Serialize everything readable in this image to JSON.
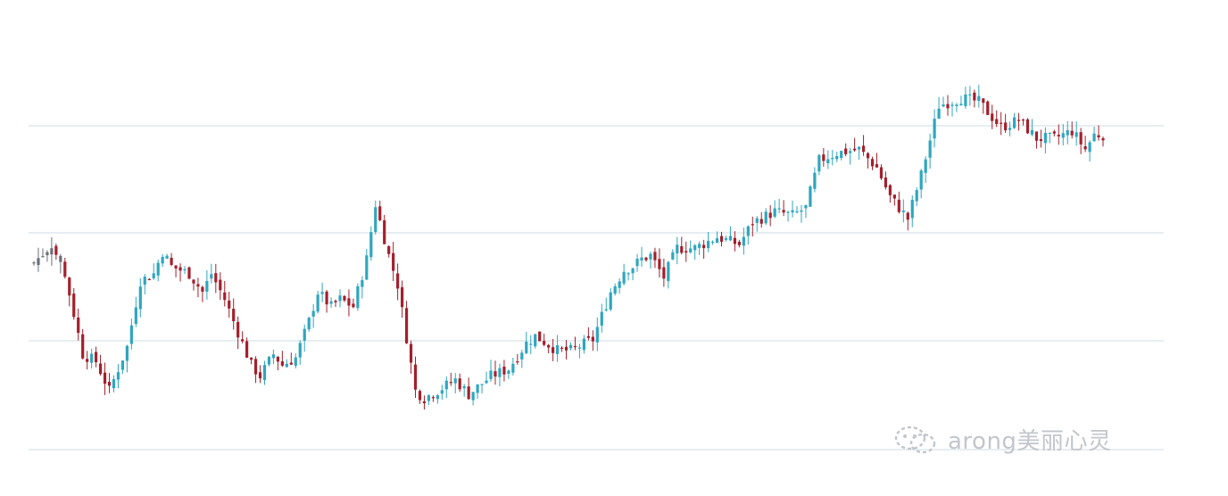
{
  "chart_data": {
    "type": "candlestick",
    "grid": true,
    "ylim": [
      0,
      100
    ],
    "colors": {
      "up": "#2fa6bf",
      "down": "#a3202c",
      "neutral": "#6b7078",
      "grid": "#cfdde6"
    },
    "close_path": [
      [
        0,
        55
      ],
      [
        4,
        60
      ],
      [
        7,
        52
      ],
      [
        11,
        30
      ],
      [
        14,
        28
      ],
      [
        17,
        20
      ],
      [
        21,
        32
      ],
      [
        24,
        50
      ],
      [
        27,
        52
      ],
      [
        29,
        58
      ],
      [
        31,
        54
      ],
      [
        35,
        52
      ],
      [
        38,
        47
      ],
      [
        40,
        52
      ],
      [
        43,
        45
      ],
      [
        46,
        36
      ],
      [
        49,
        27
      ],
      [
        51,
        24
      ],
      [
        54,
        30
      ],
      [
        56,
        27
      ],
      [
        59,
        29
      ],
      [
        62,
        39
      ],
      [
        64,
        47
      ],
      [
        67,
        43
      ],
      [
        69,
        45
      ],
      [
        72,
        43
      ],
      [
        75,
        56
      ],
      [
        77,
        71
      ],
      [
        80,
        57
      ],
      [
        82,
        49
      ],
      [
        86,
        20
      ],
      [
        88,
        18
      ],
      [
        91,
        20
      ],
      [
        95,
        23
      ],
      [
        98,
        19
      ],
      [
        103,
        24
      ],
      [
        107,
        26
      ],
      [
        111,
        33
      ],
      [
        113,
        35
      ],
      [
        118,
        31
      ],
      [
        121,
        31
      ],
      [
        126,
        34
      ],
      [
        130,
        47
      ],
      [
        133,
        53
      ],
      [
        135,
        54
      ],
      [
        137,
        56
      ],
      [
        139,
        57
      ],
      [
        142,
        51
      ],
      [
        145,
        59
      ],
      [
        149,
        59
      ],
      [
        154,
        62
      ],
      [
        159,
        60
      ],
      [
        162,
        66
      ],
      [
        167,
        69
      ],
      [
        171,
        68
      ],
      [
        174,
        70
      ],
      [
        177,
        83
      ],
      [
        181,
        85
      ],
      [
        186,
        86
      ],
      [
        190,
        81
      ],
      [
        193,
        73
      ],
      [
        195,
        70
      ],
      [
        197,
        67
      ],
      [
        200,
        79
      ],
      [
        204,
        98
      ],
      [
        209,
        100
      ],
      [
        213,
        99
      ],
      [
        218,
        92
      ],
      [
        222,
        94
      ],
      [
        226,
        89
      ],
      [
        230,
        89
      ],
      [
        234,
        91
      ],
      [
        237,
        86
      ],
      [
        239,
        90
      ],
      [
        241,
        90
      ]
    ],
    "candle_count": 242,
    "watermark": "arong美丽心灵"
  }
}
